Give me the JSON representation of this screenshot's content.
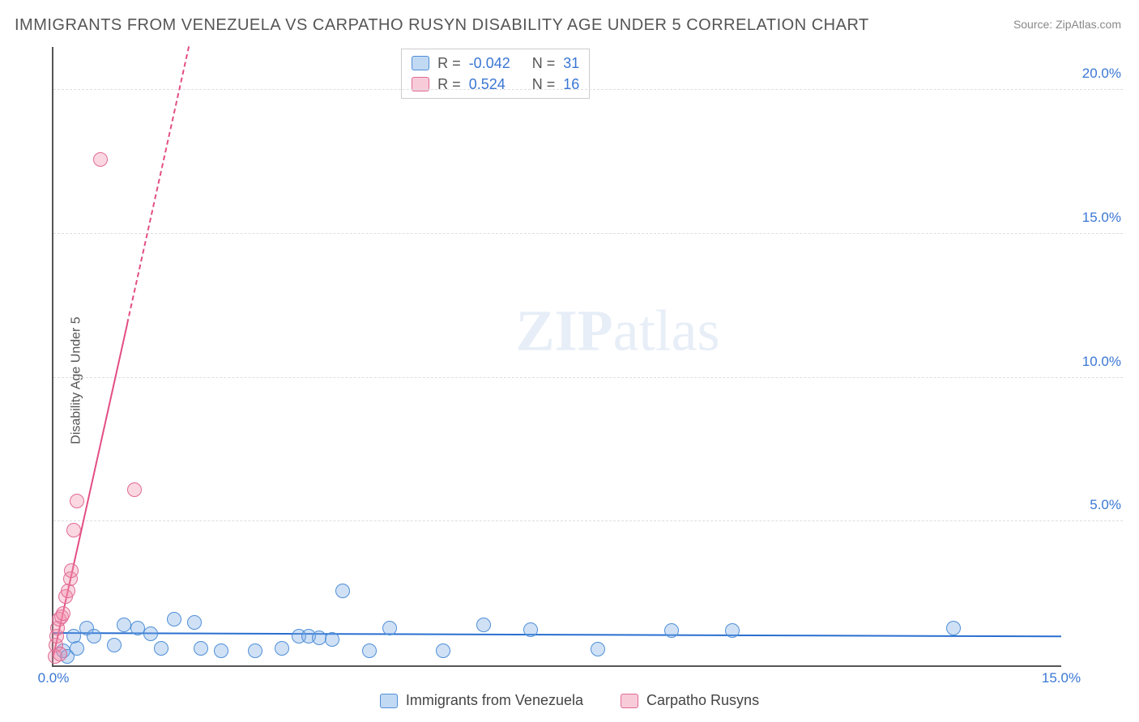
{
  "title": "IMMIGRANTS FROM VENEZUELA VS CARPATHO RUSYN DISABILITY AGE UNDER 5 CORRELATION CHART",
  "source": "Source: ZipAtlas.com",
  "ylabel": "Disability Age Under 5",
  "watermark": {
    "bold": "ZIP",
    "rest": "atlas"
  },
  "chart": {
    "type": "scatter",
    "background_color": "#ffffff",
    "grid_color": "#dddddd",
    "axis_color": "#555555",
    "xlim": [
      0.0,
      15.0
    ],
    "ylim": [
      0.0,
      21.5
    ],
    "xticks": [
      {
        "v": 0.0,
        "label": "0.0%",
        "color": "#3a77d4"
      },
      {
        "v": 15.0,
        "label": "15.0%",
        "color": "#3a77d4"
      }
    ],
    "yticks": [
      {
        "v": 5.0,
        "label": "5.0%",
        "color": "#3a77d4"
      },
      {
        "v": 10.0,
        "label": "10.0%",
        "color": "#3a77d4"
      },
      {
        "v": 15.0,
        "label": "15.0%",
        "color": "#3a77d4"
      },
      {
        "v": 20.0,
        "label": "20.0%",
        "color": "#3a77d4"
      }
    ],
    "series": [
      {
        "name": "Immigrants from Venezuela",
        "color_fill": "rgba(120,170,230,0.35)",
        "color_stroke": "#4f8fd6",
        "marker_radius": 9,
        "R": "-0.042",
        "N": "31",
        "trend": {
          "slope": -0.008,
          "intercept": 1.1,
          "color": "#2a6fd0",
          "width": 2.5,
          "dash": false
        },
        "points": [
          [
            0.15,
            0.5
          ],
          [
            0.2,
            0.3
          ],
          [
            0.3,
            1.0
          ],
          [
            0.35,
            0.6
          ],
          [
            0.5,
            1.3
          ],
          [
            0.6,
            1.0
          ],
          [
            0.9,
            0.7
          ],
          [
            1.05,
            1.4
          ],
          [
            1.25,
            1.3
          ],
          [
            1.45,
            1.1
          ],
          [
            1.6,
            0.6
          ],
          [
            1.8,
            1.6
          ],
          [
            2.1,
            1.5
          ],
          [
            2.2,
            0.6
          ],
          [
            2.5,
            0.5
          ],
          [
            3.0,
            0.5
          ],
          [
            3.4,
            0.6
          ],
          [
            3.65,
            1.0
          ],
          [
            3.8,
            1.0
          ],
          [
            3.95,
            0.95
          ],
          [
            4.15,
            0.9
          ],
          [
            4.3,
            2.6
          ],
          [
            4.7,
            0.5
          ],
          [
            5.0,
            1.3
          ],
          [
            5.8,
            0.5
          ],
          [
            6.4,
            1.4
          ],
          [
            7.1,
            1.25
          ],
          [
            8.1,
            0.55
          ],
          [
            9.2,
            1.2
          ],
          [
            10.1,
            1.2
          ],
          [
            13.4,
            1.3
          ]
        ]
      },
      {
        "name": "Carpatho Rusyns",
        "color_fill": "rgba(240,140,170,0.35)",
        "color_stroke": "#e06a95",
        "marker_radius": 9,
        "R": "0.524",
        "N": "16",
        "trend": {
          "slope": 10.5,
          "intercept": 0.3,
          "color": "#e34d84",
          "width": 2.5,
          "dash": true,
          "dash_from_x": 1.1
        },
        "points": [
          [
            0.02,
            0.3
          ],
          [
            0.04,
            0.7
          ],
          [
            0.05,
            1.0
          ],
          [
            0.06,
            1.3
          ],
          [
            0.08,
            1.6
          ],
          [
            0.1,
            0.4
          ],
          [
            0.12,
            1.7
          ],
          [
            0.14,
            1.8
          ],
          [
            0.18,
            2.4
          ],
          [
            0.22,
            2.6
          ],
          [
            0.25,
            3.0
          ],
          [
            0.26,
            3.3
          ],
          [
            0.3,
            4.7
          ],
          [
            0.35,
            5.7
          ],
          [
            0.7,
            17.6
          ],
          [
            1.2,
            6.1
          ]
        ]
      }
    ]
  },
  "legend_top": {
    "rows": [
      {
        "swatch_fill": "rgba(120,170,230,0.45)",
        "swatch_stroke": "#4f8fd6",
        "r_label": "R =",
        "r_value": "-0.042",
        "n_label": "N =",
        "n_value": "31",
        "value_color": "#3a77d4",
        "label_color": "#555555"
      },
      {
        "swatch_fill": "rgba(240,140,170,0.45)",
        "swatch_stroke": "#e06a95",
        "r_label": "R =",
        "r_value": " 0.524",
        "n_label": "N =",
        "n_value": "16",
        "value_color": "#3a77d4",
        "label_color": "#555555"
      }
    ]
  },
  "legend_bottom": [
    {
      "swatch_fill": "rgba(120,170,230,0.45)",
      "swatch_stroke": "#4f8fd6",
      "label": "Immigrants from Venezuela"
    },
    {
      "swatch_fill": "rgba(240,140,170,0.45)",
      "swatch_stroke": "#e06a95",
      "label": "Carpatho Rusyns"
    }
  ]
}
